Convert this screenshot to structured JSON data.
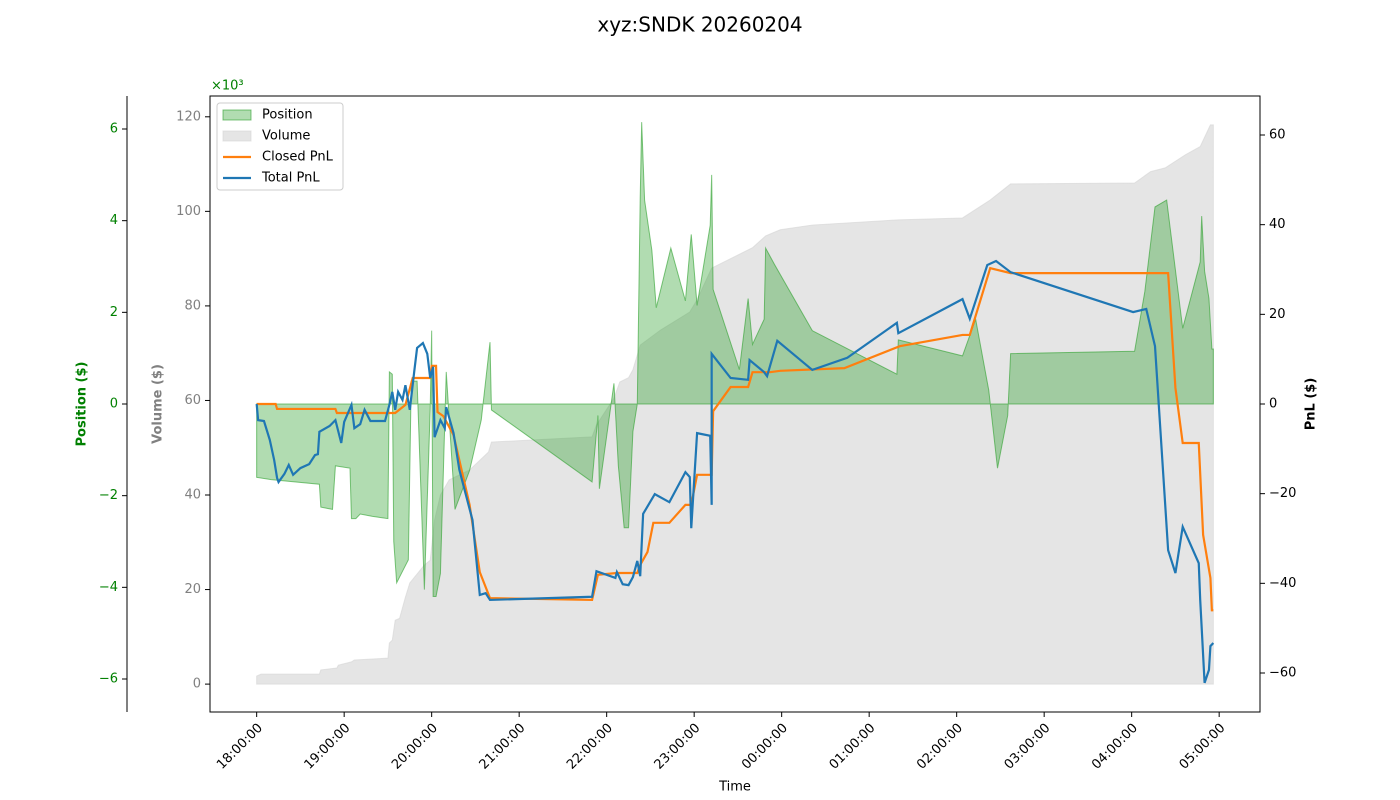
{
  "chart_data": {
    "type": "multi-axis",
    "title": "xyz:SNDK 20260204",
    "xlabel": "Time",
    "ylabel": "Position ($)",
    "y2label": "PnL ($)",
    "y3label": "Volume ($)",
    "y_offset_label": "×10³",
    "xlim": [
      "17:28:00",
      "05:28:00"
    ],
    "xticks": [
      "18:00:00",
      "19:00:00",
      "20:00:00",
      "21:00:00",
      "22:00:00",
      "23:00:00",
      "00:00:00",
      "01:00:00",
      "02:00:00",
      "03:00:00",
      "04:00:00",
      "05:00:00"
    ],
    "ylim": [
      -6.72,
      6.72
    ],
    "yticks": [
      {
        "value": -6,
        "label": "−6"
      },
      {
        "value": -4,
        "label": "−4"
      },
      {
        "value": -2,
        "label": "−2"
      },
      0,
      2,
      4,
      6
    ],
    "y2lim": [
      -68.7,
      68.7
    ],
    "y2ticks": [
      {
        "value": -60,
        "label": "−60"
      },
      {
        "value": -40,
        "label": "−40"
      },
      {
        "value": -20,
        "label": "−20"
      },
      0,
      20,
      40,
      60
    ],
    "y3lim": [
      -5.9,
      124.4
    ],
    "y3ticks": [
      0,
      20,
      40,
      60,
      80,
      100,
      120
    ],
    "ycolor": "#008000",
    "y3color": "#808080",
    "legend": "upper left",
    "series": [
      {
        "name": "Volume",
        "kind": "area",
        "axis": "y3",
        "color": "#d3d3d3",
        "x": [
          "18:00:00",
          "18:03:00",
          "18:43:00",
          "18:44:00",
          "18:55:00",
          "18:56:00",
          "19:05:00",
          "19:07:00",
          "19:30:00",
          "19:31:00",
          "19:33:00",
          "19:35:00",
          "19:38:00",
          "19:42:00",
          "19:45:00",
          "19:55:00",
          "19:59:00",
          "20:02:00",
          "20:06:00",
          "20:12:00",
          "20:26:00",
          "20:39:00",
          "20:41:00",
          "21:50:00",
          "21:53:00",
          "22:05:00",
          "22:09:00",
          "22:15:00",
          "22:18:00",
          "22:23:00",
          "22:37:00",
          "22:57:00",
          "23:02:00",
          "23:12:00",
          "23:40:00",
          "23:49:00",
          "23:59:00",
          "00:21:00",
          "01:20:00",
          "02:04:00",
          "02:23:00",
          "02:37:00",
          "04:02:00",
          "04:13:00",
          "04:23:00",
          "04:37:00",
          "04:47:00",
          "04:54:00",
          "04:56:00"
        ],
        "values": [
          1.7,
          2.1,
          2.1,
          3.0,
          3.4,
          4.0,
          4.7,
          5.1,
          5.5,
          8.7,
          9.3,
          13.5,
          13.9,
          18.4,
          21.4,
          25.2,
          26.2,
          34.7,
          40,
          43.2,
          45.3,
          49.1,
          51.2,
          52.3,
          54.8,
          60.5,
          63.9,
          64.8,
          66.5,
          71.7,
          74.9,
          78.7,
          81.3,
          88,
          92.3,
          94.8,
          96.1,
          97.1,
          98.2,
          98.6,
          102.4,
          105.8,
          106,
          108.4,
          109.2,
          112,
          113.7,
          118.3,
          118.3
        ]
      },
      {
        "name": "Position",
        "kind": "area",
        "axis": "y",
        "color": "#2ca02c",
        "x": [
          "18:00:00",
          "18:00:00",
          "18:10:00",
          "18:43:00",
          "18:44:00",
          "18:52:00",
          "18:54:00",
          "19:04:00",
          "19:05:00",
          "19:08:00",
          "19:11:00",
          "19:19:00",
          "19:30:00",
          "19:31:00",
          "19:33:00",
          "19:34:00",
          "19:36:00",
          "19:40:00",
          "19:44:00",
          "19:46:00",
          "19:50:00",
          "19:55:00",
          "19:59:00",
          "20:00:00",
          "20:01:00",
          "20:03:00",
          "20:06:00",
          "20:10:00",
          "20:16:00",
          "20:26:00",
          "20:34:00",
          "20:40:00",
          "20:41:00",
          "21:50:00",
          "21:54:00",
          "21:55:00",
          "22:05:00",
          "22:08:00",
          "22:12:00",
          "22:15:00",
          "22:18:00",
          "22:21:00",
          "22:23:00",
          "22:24:00",
          "22:26:00",
          "22:31:00",
          "22:34:00",
          "22:44:00",
          "22:54:00",
          "22:58:00",
          "23:02:00",
          "23:11:00",
          "23:12:00",
          "23:13:00",
          "23:31:00",
          "23:37:00",
          "23:40:00",
          "23:48:00",
          "23:49:00",
          "23:55:00",
          "00:21:00",
          "01:19:00",
          "01:20:00",
          "02:04:00",
          "02:13:00",
          "02:22:00",
          "02:28:00",
          "02:35:00",
          "02:37:00",
          "04:02:00",
          "04:09:00",
          "04:16:00",
          "04:24:00",
          "04:35:00",
          "04:47:00",
          "04:48:00",
          "04:50:00",
          "04:53:00",
          "04:55:00",
          "04:56:00"
        ],
        "values": [
          0,
          -1.6,
          -1.65,
          -1.75,
          -2.25,
          -2.3,
          -1.35,
          -1.4,
          -2.5,
          -2.5,
          -2.4,
          -2.45,
          -2.5,
          0.7,
          0.65,
          -3.0,
          -3.9,
          -3.65,
          -3.4,
          0.5,
          0.5,
          -4.05,
          -0.1,
          1.6,
          -4.2,
          -4.2,
          -3.7,
          0.7,
          -2.3,
          -1.45,
          -0.35,
          1.35,
          -0.13,
          -1.7,
          -0.25,
          -1.85,
          0.45,
          -1.35,
          -2.7,
          -2.7,
          -0.6,
          0,
          4.5,
          6.15,
          4.45,
          3.35,
          2.1,
          3.4,
          2.25,
          3.7,
          2.15,
          3.9,
          5.0,
          2.5,
          0.75,
          2.3,
          1.3,
          1.85,
          3.4,
          3.05,
          1.6,
          0.65,
          1.4,
          1.05,
          1.85,
          0.3,
          -1.4,
          -0.25,
          1.1,
          1.15,
          2.45,
          4.3,
          4.45,
          1.65,
          3.1,
          4.1,
          2.9,
          2.3,
          1.2,
          1.2
        ]
      },
      {
        "name": "Closed PnL",
        "kind": "line",
        "axis": "y2",
        "color": "#ff7f0e",
        "x": [
          "18:00:00",
          "18:13:00",
          "18:14:00",
          "18:54:00",
          "18:55:00",
          "19:35:00",
          "19:42:00",
          "19:47:00",
          "19:59:00",
          "20:00:00",
          "20:03:00",
          "20:04:00",
          "20:08:00",
          "20:15:00",
          "20:26:00",
          "20:33:00",
          "20:40:00",
          "21:50:00",
          "21:54:00",
          "22:07:00",
          "22:21:00",
          "22:23:00",
          "22:28:00",
          "22:32:00",
          "22:43:00",
          "22:54:00",
          "22:58:00",
          "23:02:00",
          "23:12:00",
          "23:13:00",
          "23:25:00",
          "23:37:00",
          "23:40:00",
          "23:52:00",
          "23:59:00",
          "00:43:00",
          "01:21:00",
          "02:04:00",
          "02:09:00",
          "02:23:00",
          "02:37:00",
          "04:25:00",
          "04:30:00",
          "04:35:00",
          "04:46:00",
          "04:49:00",
          "04:54:00",
          "04:55:00",
          "04:56:00"
        ],
        "values": [
          0,
          0,
          -1.1,
          -1.1,
          -2,
          -2,
          -0.2,
          5.8,
          5.8,
          8.5,
          8.5,
          -1.8,
          -2.7,
          -6.9,
          -22.5,
          -37.5,
          -43.3,
          -43.7,
          -38.1,
          -37.7,
          -37.7,
          -35.9,
          -33,
          -26.5,
          -26.5,
          -22.5,
          -22.5,
          -15.8,
          -15.8,
          -1.6,
          3.8,
          3.8,
          7.1,
          7.1,
          7.4,
          8,
          12.9,
          15.4,
          15.4,
          30.3,
          29.2,
          29.2,
          3.6,
          -8.7,
          -8.7,
          -29.2,
          -38.8,
          -46,
          -46
        ]
      },
      {
        "name": "Total PnL",
        "kind": "line",
        "axis": "y2",
        "color": "#1f77b4",
        "x": [
          "18:00:00",
          "18:01:00",
          "18:05:00",
          "18:09:00",
          "18:12:00",
          "18:14:00",
          "18:15:00",
          "18:19:00",
          "18:22:00",
          "18:25:00",
          "18:30:00",
          "18:36:00",
          "18:40:00",
          "18:42:00",
          "18:43:00",
          "18:50:00",
          "18:54:00",
          "18:58:00",
          "19:00:00",
          "19:05:00",
          "19:07:00",
          "19:11:00",
          "19:14:00",
          "19:18:00",
          "19:28:00",
          "19:31:00",
          "19:33:00",
          "19:35:00",
          "19:37:00",
          "19:40:00",
          "19:42:00",
          "19:45:00",
          "19:48:00",
          "19:50:00",
          "19:54:00",
          "19:57:00",
          "19:59:00",
          "20:01:00",
          "20:02:00",
          "20:06:00",
          "20:09:00",
          "20:10:00",
          "20:15:00",
          "20:19:00",
          "20:28:00",
          "20:33:00",
          "20:37:00",
          "20:40:00",
          "21:50:00",
          "21:53:00",
          "22:06:00",
          "22:07:00",
          "22:11:00",
          "22:15:00",
          "22:18:00",
          "22:21:00",
          "22:23:00",
          "22:25:00",
          "22:33:00",
          "22:43:00",
          "22:54:00",
          "22:57:00",
          "22:58:00",
          "23:02:00",
          "23:11:00",
          "23:12:00",
          "23:12:00",
          "23:25:00",
          "23:37:00",
          "23:38:00",
          "23:48:00",
          "23:50:00",
          "23:57:00",
          "00:21:00",
          "00:45:00",
          "01:19:00",
          "01:20:00",
          "02:04:00",
          "02:09:00",
          "02:21:00",
          "02:27:00",
          "02:37:00",
          "04:01:00",
          "04:10:00",
          "04:16:00",
          "04:25:00",
          "04:30:00",
          "04:35:00",
          "04:46:00",
          "04:47:00",
          "04:50:00",
          "04:53:00",
          "04:54:00",
          "04:56:00"
        ],
        "values": [
          0,
          -3.6,
          -3.8,
          -8,
          -12.5,
          -16.5,
          -17.4,
          -15.6,
          -13.6,
          -15.8,
          -14.3,
          -13.4,
          -11.4,
          -11.2,
          -6.2,
          -4.9,
          -3.6,
          -8.7,
          -4,
          -0.2,
          -5.4,
          -4.5,
          -1.3,
          -3.8,
          -3.8,
          -0.2,
          2.7,
          -1.3,
          2.7,
          0.9,
          4.2,
          -1.3,
          7.1,
          12.5,
          13.6,
          11.2,
          5.8,
          8.3,
          -7.4,
          -3.6,
          -5.4,
          -0.7,
          -6.5,
          -14.7,
          -25.9,
          -42.6,
          -42.2,
          -43.7,
          -43,
          -37.3,
          -38.8,
          -37.5,
          -40.2,
          -40.4,
          -38.6,
          -35,
          -38.4,
          -24.5,
          -20.1,
          -21.9,
          -15.2,
          -16.3,
          -27.7,
          -6.5,
          -7.1,
          -22.5,
          11.2,
          5.8,
          5.4,
          9.8,
          7.1,
          6.2,
          14.1,
          7.6,
          10.3,
          18.1,
          15.8,
          23.4,
          19,
          31,
          31.9,
          29.4,
          20.5,
          21.2,
          12.9,
          -32.6,
          -37.7,
          -27.4,
          -35.5,
          -43.7,
          -62.2,
          -59.3,
          -54,
          -53.3
        ]
      }
    ]
  }
}
